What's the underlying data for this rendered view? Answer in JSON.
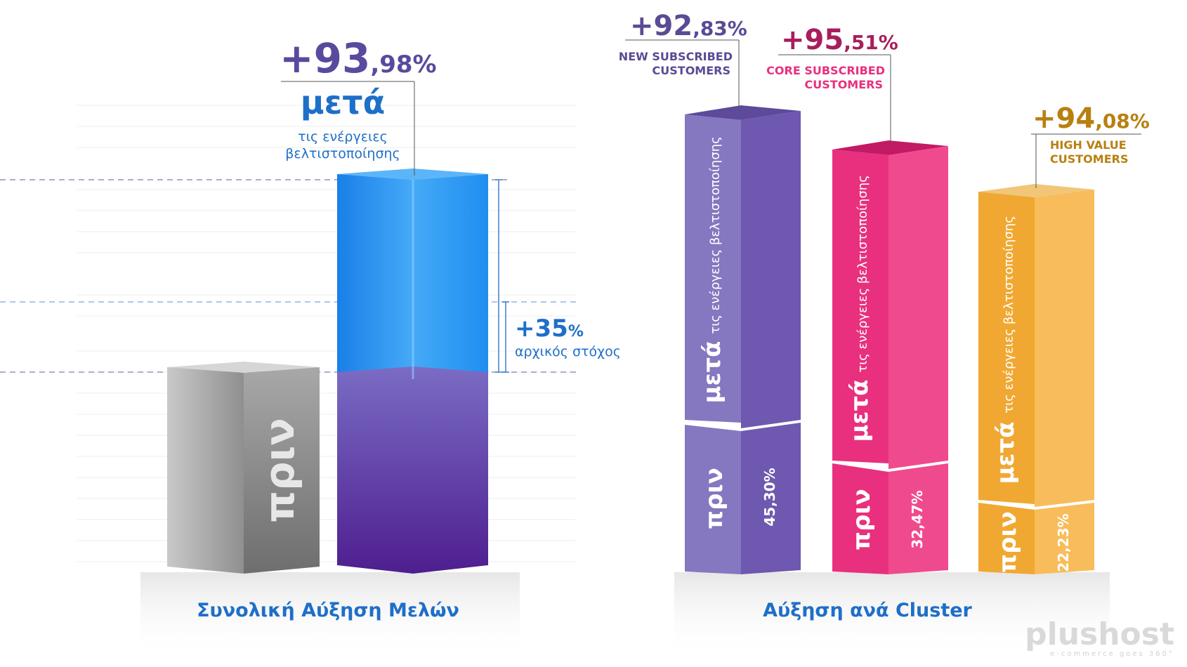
{
  "left_chart": {
    "title": "Συνολική Αύξηση Μελών",
    "before_label": "πριν",
    "after_big": "+93",
    "after_small": ",98%",
    "after_word": "μετά",
    "after_sub1": "τις ενέργειες",
    "after_sub2": "βελτιστοποίησης",
    "target_big": "+35",
    "target_small": "%",
    "target_label": "αρχικός στόχος",
    "colors": {
      "before": "#9a9a9a",
      "after_top": "#1f8ef0",
      "after_bottom": "#5b2fa6",
      "title": "#1e6fc8"
    }
  },
  "right_chart": {
    "title": "Αύξηση ανά Cluster",
    "after_word": "μετά",
    "after_sub": "τις ενέργειες βελτιστοποίησης",
    "before_label": "πριν"
  },
  "chart_data": [
    {
      "type": "bar",
      "title": "Συνολική Αύξηση Μελών",
      "categories": [
        "πριν",
        "μετά"
      ],
      "values": [
        100,
        193.98
      ],
      "annotations": [
        "+93,98%",
        "+35% αρχικός στόχος"
      ],
      "target_value": 135
    },
    {
      "type": "bar",
      "title": "Αύξηση ανά Cluster",
      "categories": [
        "NEW SUBSCRIBED CUSTOMERS",
        "CORE SUBSCRIBED CUSTOMERS",
        "HIGH VALUE CUSTOMERS"
      ],
      "series": [
        {
          "name": "πριν",
          "values": [
            45.3,
            32.47,
            22.23
          ]
        },
        {
          "name": "μετά",
          "values": [
            92.83,
            95.51,
            94.08
          ]
        }
      ]
    }
  ],
  "clusters": [
    {
      "big": "+92",
      "small": ",83%",
      "name1": "NEW SUBSCRIBED",
      "name2": "CUSTOMERS",
      "before_pct": "45,30%",
      "color": "#7a63b0",
      "label_color": "#5b4a94"
    },
    {
      "big": "+95",
      "small": ",51%",
      "name1": "CORE SUBSCRIBED",
      "name2": "CUSTOMERS",
      "before_pct": "32,47%",
      "color": "#e8307e",
      "label_color": "#a81e5c"
    },
    {
      "big": "+94",
      "small": ",08%",
      "name1": "HIGH VALUE",
      "name2": "CUSTOMERS",
      "before_pct": "22,23%",
      "color": "#f5ad42",
      "label_color": "#b8800f"
    }
  ],
  "watermark": {
    "brand": "plushost",
    "tagline": "e-commerce goes 360°"
  }
}
